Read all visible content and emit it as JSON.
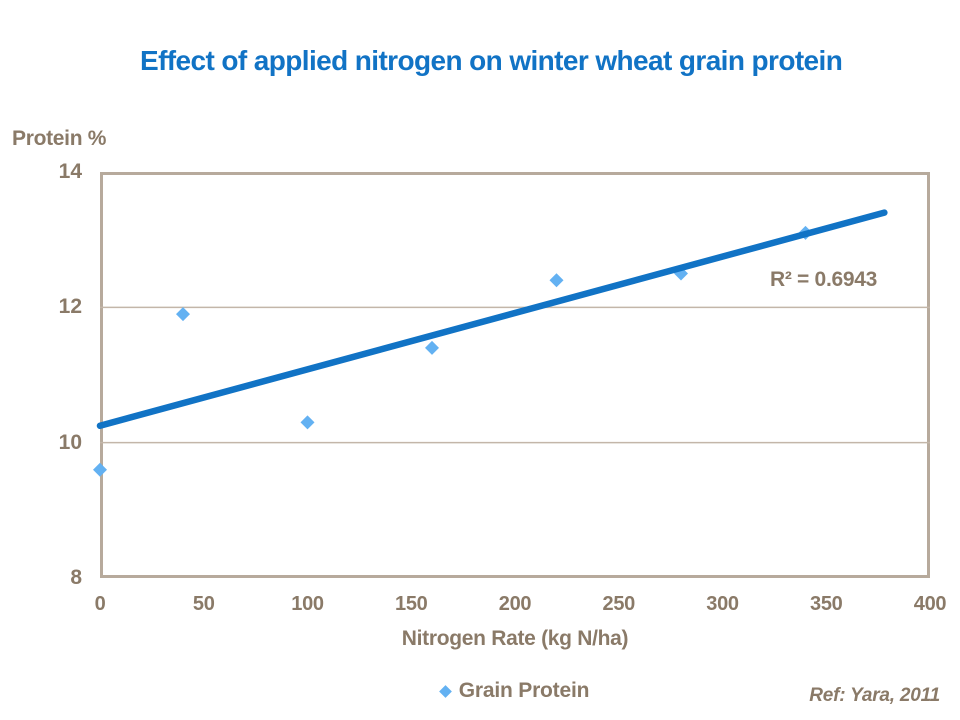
{
  "title": {
    "text": "Effect of applied nitrogen on winter wheat grain protein"
  },
  "axes": {
    "y_title": "Protein %",
    "x_title": "Nitrogen Rate (kg N/ha)"
  },
  "annotation": {
    "r_squared": "R² = 0.6943"
  },
  "legend": {
    "label": "Grain Protein",
    "marker": "diamond-icon",
    "position": "bottom-center"
  },
  "reference": {
    "text": "Ref: Yara, 2011"
  },
  "colors": {
    "brand_blue": "#1173c5",
    "marker_blue": "#63b1f2",
    "text_brown": "#8a7a68",
    "frame_tan": "#b7aa9c",
    "grid_tan": "#c3b6a9",
    "bg": "#ffffff"
  },
  "chart_data": {
    "type": "scatter",
    "title": "Effect of applied nitrogen on winter wheat grain protein",
    "xlabel": "Nitrogen Rate (kg N/ha)",
    "ylabel": "Protein %",
    "xlim": [
      0,
      400
    ],
    "ylim": [
      8,
      14
    ],
    "x_ticks": [
      0,
      50,
      100,
      150,
      200,
      250,
      300,
      350,
      400
    ],
    "y_ticks": [
      14,
      12,
      10,
      8
    ],
    "gridlines": {
      "horizontal": [
        12,
        10
      ],
      "vertical": []
    },
    "series": [
      {
        "name": "Grain Protein",
        "marker": "diamond",
        "points": [
          [
            0,
            9.6
          ],
          [
            40,
            11.9
          ],
          [
            100,
            10.3
          ],
          [
            160,
            11.4
          ],
          [
            220,
            12.4
          ],
          [
            280,
            12.5
          ],
          [
            340,
            13.1
          ]
        ]
      }
    ],
    "trendline": {
      "type": "linear",
      "x_start": 0,
      "y_start": 10.25,
      "x_end": 378,
      "y_end": 13.4,
      "r_squared": 0.6943
    },
    "legend_entries": [
      "Grain Protein"
    ]
  }
}
